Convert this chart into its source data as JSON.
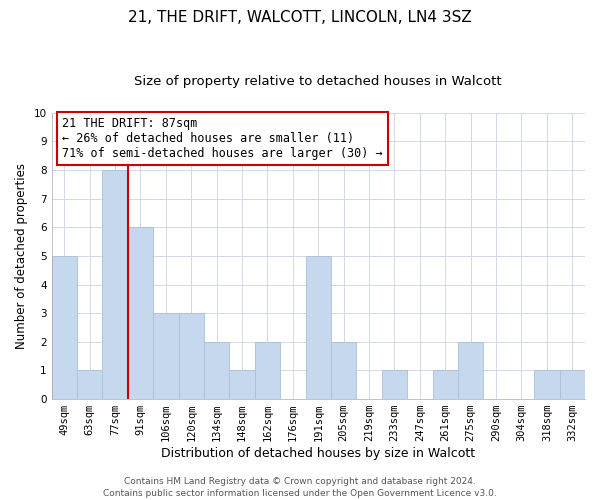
{
  "title": "21, THE DRIFT, WALCOTT, LINCOLN, LN4 3SZ",
  "subtitle": "Size of property relative to detached houses in Walcott",
  "xlabel": "Distribution of detached houses by size in Walcott",
  "ylabel": "Number of detached properties",
  "categories": [
    "49sqm",
    "63sqm",
    "77sqm",
    "91sqm",
    "106sqm",
    "120sqm",
    "134sqm",
    "148sqm",
    "162sqm",
    "176sqm",
    "191sqm",
    "205sqm",
    "219sqm",
    "233sqm",
    "247sqm",
    "261sqm",
    "275sqm",
    "290sqm",
    "304sqm",
    "318sqm",
    "332sqm"
  ],
  "values": [
    5,
    1,
    8,
    6,
    3,
    3,
    2,
    1,
    2,
    0,
    5,
    2,
    0,
    1,
    0,
    1,
    2,
    0,
    0,
    1,
    1
  ],
  "bar_color": "#c5d8ed",
  "bar_edge_color": "#a8c0d9",
  "grid_color": "#d0d8e8",
  "vline_x_index": 2,
  "vline_color": "#cc0000",
  "ylim": [
    0,
    10
  ],
  "annotation_title": "21 THE DRIFT: 87sqm",
  "annotation_line1": "← 26% of detached houses are smaller (11)",
  "annotation_line2": "71% of semi-detached houses are larger (30) →",
  "annotation_box_color": "#ffffff",
  "annotation_box_edge": "#cc0000",
  "footer_line1": "Contains HM Land Registry data © Crown copyright and database right 2024.",
  "footer_line2": "Contains public sector information licensed under the Open Government Licence v3.0.",
  "title_fontsize": 11,
  "subtitle_fontsize": 9.5,
  "xlabel_fontsize": 9,
  "ylabel_fontsize": 8.5,
  "tick_fontsize": 7.5,
  "annotation_fontsize": 8.5,
  "footer_fontsize": 6.5
}
